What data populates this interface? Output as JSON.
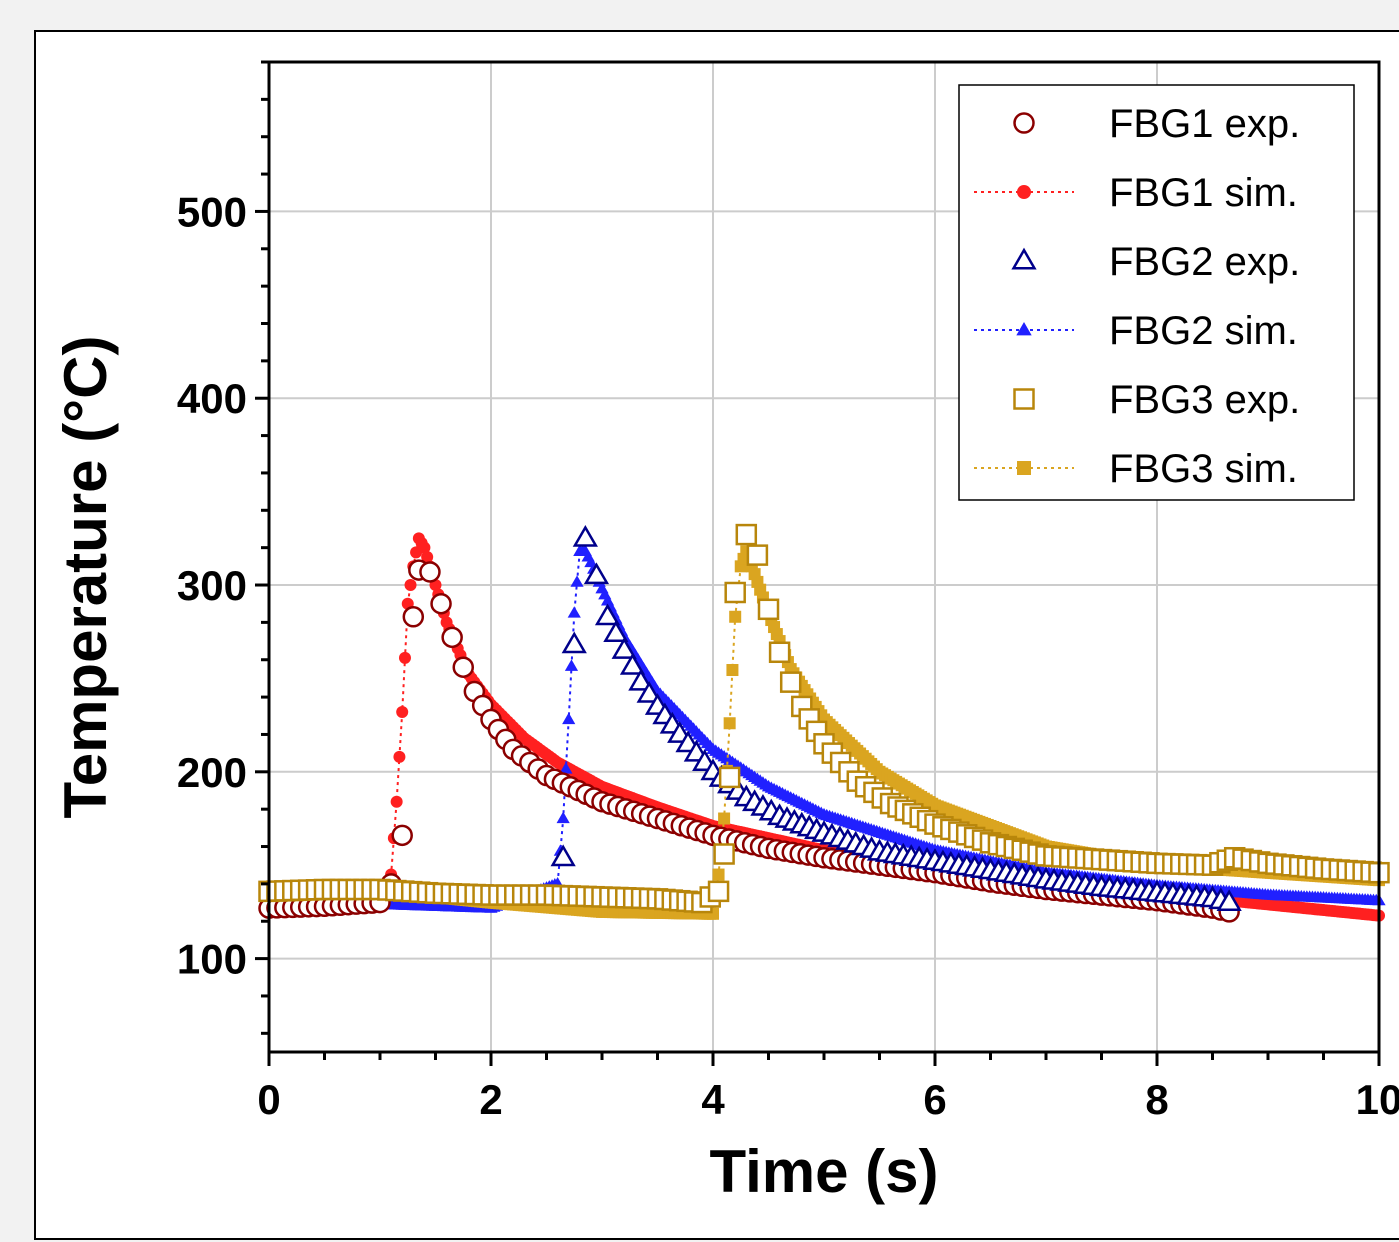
{
  "chart_data": {
    "type": "scatter",
    "xlabel": "Time (s)",
    "ylabel": "Temperature (°C)",
    "xlim": [
      0,
      10
    ],
    "ylim": [
      50,
      580
    ],
    "xticks": [
      "0",
      "2",
      "4",
      "6",
      "8",
      "10"
    ],
    "yticks": [
      "100",
      "200",
      "300",
      "400",
      "500"
    ],
    "grid": true,
    "legend_position": "top-right",
    "colors": {
      "fbg1_exp": "#8b0000",
      "fbg1_sim": "#ff2020",
      "fbg2_exp": "#00008b",
      "fbg2_sim": "#2020ff",
      "fbg3_exp": "#b8860b",
      "fbg3_sim": "#daa520"
    },
    "series": [
      {
        "name": "FBG1 exp.",
        "marker": "circle-open",
        "x": [
          0,
          0.5,
          1.0,
          1.1,
          1.2,
          1.3,
          1.35,
          1.45,
          1.55,
          1.65,
          1.75,
          1.85,
          2.0,
          2.2,
          2.5,
          3.0,
          3.5,
          4.0,
          4.5,
          5.0,
          5.5,
          6.0,
          6.5,
          7.0,
          7.5,
          8.0,
          8.5,
          8.65
        ],
        "y": [
          127,
          128,
          130,
          140,
          166,
          283,
          308,
          307,
          290,
          272,
          256,
          243,
          228,
          212,
          198,
          184,
          175,
          166,
          159,
          154,
          150,
          146,
          141,
          137,
          134,
          131,
          127,
          125
        ]
      },
      {
        "name": "FBG1 sim.",
        "marker": "circle-filled",
        "x": [
          0,
          0.5,
          1.0,
          1.1,
          1.15,
          1.2,
          1.25,
          1.3,
          1.35,
          1.4,
          1.5,
          1.6,
          1.8,
          2.0,
          2.3,
          2.6,
          3.0,
          3.5,
          4.0,
          5.0,
          6.0,
          7.0,
          8.0,
          9.0,
          10.0
        ],
        "y": [
          128,
          129,
          130,
          145,
          184,
          232,
          290,
          310,
          325,
          320,
          300,
          280,
          252,
          236,
          218,
          205,
          192,
          181,
          171,
          158,
          149,
          142,
          135,
          129,
          123
        ]
      },
      {
        "name": "FBG2 exp.",
        "marker": "triangle-open",
        "x": [
          2.65,
          2.75,
          2.85,
          2.95,
          3.05,
          3.2,
          3.35,
          3.5,
          3.7,
          4.0,
          4.3,
          4.6,
          5.0,
          5.5,
          6.0,
          6.5,
          7.0,
          7.5,
          8.0,
          8.5,
          8.65
        ],
        "y": [
          154,
          268,
          325,
          305,
          283,
          265,
          248,
          235,
          220,
          200,
          186,
          176,
          167,
          157,
          152,
          147,
          142,
          138,
          135,
          132,
          130
        ]
      },
      {
        "name": "FBG2 sim.",
        "marker": "triangle-filled",
        "x": [
          0,
          1.0,
          2.0,
          2.6,
          2.65,
          2.7,
          2.75,
          2.8,
          2.85,
          2.9,
          3.0,
          3.2,
          3.5,
          4.0,
          4.5,
          5.0,
          6.0,
          7.0,
          8.0,
          9.0,
          10.0
        ],
        "y": [
          127,
          129,
          127,
          140,
          175,
          228,
          285,
          318,
          318,
          312,
          298,
          272,
          243,
          212,
          192,
          177,
          158,
          146,
          139,
          134,
          131
        ]
      },
      {
        "name": "FBG3 exp.",
        "marker": "square-open",
        "x": [
          0,
          0.5,
          1.0,
          1.5,
          2.0,
          2.5,
          3.0,
          3.5,
          3.9,
          4.05,
          4.1,
          4.15,
          4.2,
          4.3,
          4.4,
          4.5,
          4.6,
          4.7,
          4.8,
          5.0,
          5.3,
          5.6,
          6.0,
          6.5,
          7.0,
          7.5,
          8.0,
          8.5,
          8.7,
          9.0,
          9.5,
          10.0
        ],
        "y": [
          136,
          137,
          137,
          135,
          134,
          134,
          133,
          132,
          130,
          136,
          156,
          197,
          296,
          327,
          316,
          287,
          264,
          248,
          235,
          215,
          195,
          183,
          172,
          162,
          155,
          153,
          151,
          150,
          154,
          151,
          148,
          146
        ]
      },
      {
        "name": "FBG3 sim.",
        "marker": "square-filled",
        "x": [
          0,
          1.0,
          2.0,
          3.0,
          4.0,
          4.05,
          4.1,
          4.15,
          4.2,
          4.25,
          4.3,
          4.35,
          4.5,
          4.7,
          5.0,
          5.5,
          6.0,
          7.0,
          8.0,
          9.0,
          10.0
        ],
        "y": [
          138,
          136,
          130,
          125,
          124,
          145,
          175,
          226,
          283,
          310,
          318,
          310,
          285,
          255,
          228,
          200,
          182,
          160,
          150,
          146,
          142
        ]
      }
    ]
  }
}
